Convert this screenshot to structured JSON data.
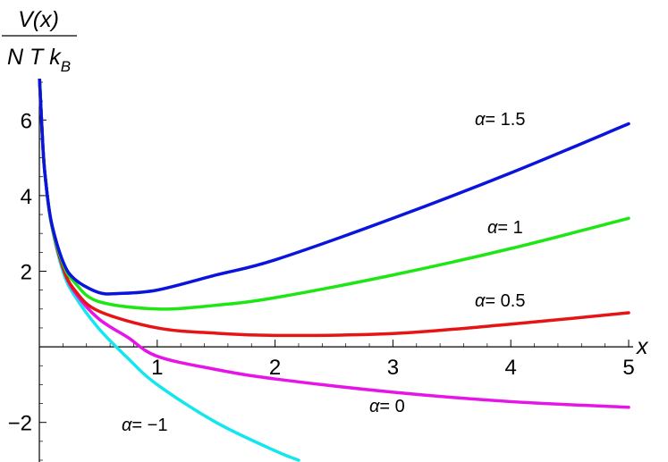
{
  "chart_data": {
    "type": "line",
    "title": "",
    "xlabel": "x",
    "ylabel": {
      "numerator": "V(x)",
      "denominator": "N T k",
      "subscript": "B"
    },
    "xlim": [
      0,
      5
    ],
    "ylim": [
      -3,
      7
    ],
    "xticks": [
      "1",
      "2",
      "3",
      "4",
      "5"
    ],
    "yticks": [
      "−2",
      "2",
      "4",
      "6"
    ],
    "grid": false,
    "series": [
      {
        "name": "α= 1.5",
        "alpha": 1.5,
        "color": "#0a14dc",
        "x": [
          0.03,
          0.05,
          0.1,
          0.2,
          0.3,
          0.5,
          0.667,
          1,
          1.5,
          2,
          3,
          4,
          5
        ],
        "y": [
          5.3,
          4.5,
          3.33,
          2.26,
          1.79,
          1.44,
          1.41,
          1.5,
          1.9,
          2.3,
          3.4,
          4.6,
          5.9
        ]
      },
      {
        "name": "α= 1",
        "alpha": 1,
        "color": "#1ee614",
        "x": [
          0.03,
          0.05,
          0.1,
          0.2,
          0.3,
          0.5,
          1,
          1.5,
          2,
          3,
          4,
          5
        ],
        "y": [
          5.3,
          4.5,
          3.3,
          2.2,
          1.7,
          1.2,
          1.0,
          1.1,
          1.3,
          1.9,
          2.6,
          3.4
        ]
      },
      {
        "name": "α= 0.5",
        "alpha": 0.5,
        "color": "#e61414",
        "x": [
          0.03,
          0.05,
          0.1,
          0.2,
          0.3,
          0.5,
          1,
          1.5,
          2,
          3,
          4,
          5
        ],
        "y": [
          5.3,
          4.5,
          3.3,
          2.1,
          1.5,
          0.95,
          0.5,
          0.36,
          0.3,
          0.35,
          0.6,
          0.9
        ]
      },
      {
        "name": "α= 0",
        "alpha": 0,
        "color": "#e614e6",
        "x": [
          0.03,
          0.05,
          0.1,
          0.2,
          0.3,
          0.5,
          0.75,
          1,
          1.5,
          2,
          3,
          4,
          5
        ],
        "y": [
          5.3,
          4.5,
          3.3,
          2.1,
          1.45,
          0.75,
          0.25,
          -0.25,
          -0.6,
          -0.85,
          -1.2,
          -1.45,
          -1.6
        ]
      },
      {
        "name": "α= −1",
        "alpha": -1,
        "color": "#14e6f0",
        "x": [
          0.03,
          0.05,
          0.1,
          0.2,
          0.3,
          0.5,
          0.75,
          1,
          1.5,
          2,
          2.2
        ],
        "y": [
          5.3,
          4.5,
          3.3,
          2.0,
          1.35,
          0.5,
          -0.3,
          -1.0,
          -2.0,
          -2.75,
          -3.0
        ]
      }
    ],
    "annotations": [
      {
        "text": "α= 1.5",
        "series": 0
      },
      {
        "text": "α= 1",
        "series": 1
      },
      {
        "text": "α= 0.5",
        "series": 2
      },
      {
        "text": "α= 0",
        "series": 3
      },
      {
        "text": "α= −1",
        "series": 4
      }
    ]
  }
}
